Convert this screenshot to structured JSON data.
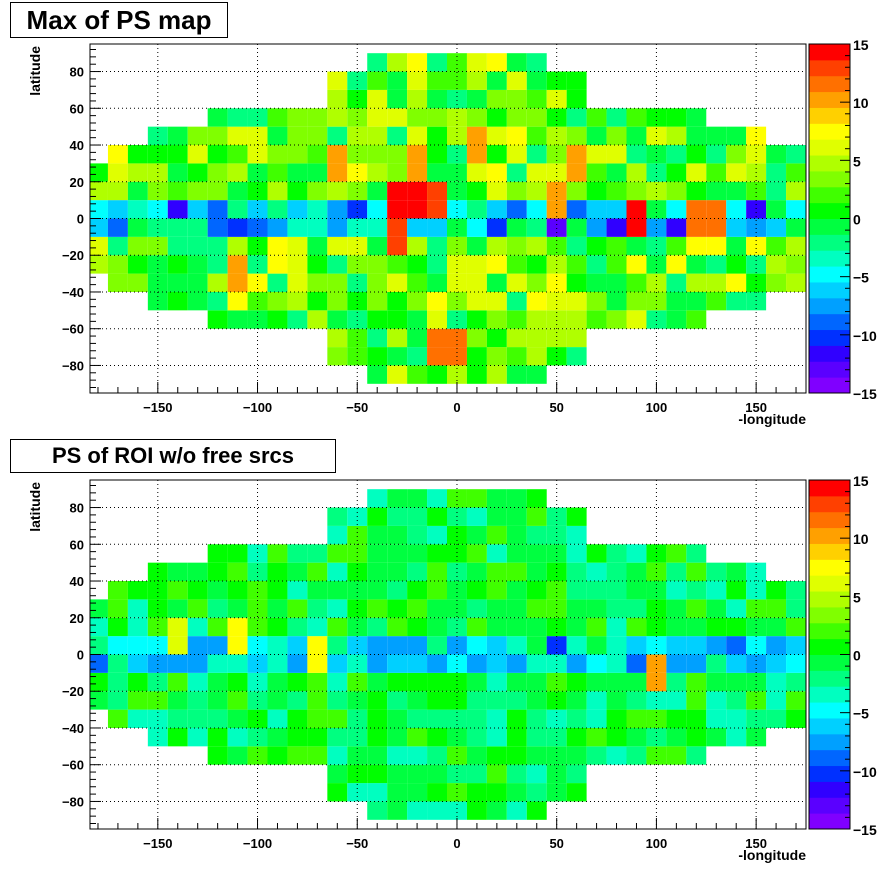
{
  "chart_data": [
    {
      "type": "heatmap",
      "title": "Max of PS map",
      "xlabel": "-longitude",
      "ylabel": "latitude",
      "xlim": [
        -184,
        175
      ],
      "ylim": [
        -95,
        95
      ],
      "xticks": [
        -150,
        -100,
        -50,
        0,
        50,
        100,
        150
      ],
      "yticks": [
        -80,
        -60,
        -40,
        -20,
        0,
        20,
        40,
        60,
        80
      ],
      "colorbar": {
        "min": -15,
        "max": 15,
        "ticks": [
          -15,
          -10,
          -5,
          0,
          5,
          10,
          15
        ]
      },
      "grid": true,
      "palette": [
        "#8000ff",
        "#5a00ff",
        "#3000ff",
        "#0030ff",
        "#0066ff",
        "#00a0ff",
        "#00d0ff",
        "#00ffff",
        "#00ffc0",
        "#00ff80",
        "#00ff40",
        "#00ff00",
        "#40ff00",
        "#80ff00",
        "#b0ff00",
        "#e0ff00",
        "#ffff00",
        "#ffd000",
        "#ffa000",
        "#ff7000",
        "#ff4000",
        "#ff0000"
      ],
      "seed": 17,
      "bias": 2.5,
      "plane_bias": -9,
      "noise": 5,
      "hot_spots": [
        {
          "lon": -30,
          "lat": 10,
          "value": 14
        },
        {
          "lon": -20,
          "lat": 10,
          "value": 14
        },
        {
          "lon": -10,
          "lat": 10,
          "value": 13
        },
        {
          "lon": 90,
          "lat": 0,
          "value": 15
        },
        {
          "lon": -30,
          "lat": -10,
          "value": 13
        },
        {
          "lon": 125,
          "lat": 0,
          "value": 11
        },
        {
          "lon": -5,
          "lat": -70,
          "value": 11
        },
        {
          "lon": -110,
          "lat": -30,
          "value": 10
        },
        {
          "lon": 60,
          "lat": 30,
          "value": 10
        },
        {
          "lon": -60,
          "lat": 30,
          "value": 10
        },
        {
          "lon": -20,
          "lat": 30,
          "value": 10
        },
        {
          "lon": 10,
          "lat": 40,
          "value": 10
        },
        {
          "lon": 50,
          "lat": 10,
          "value": 10
        }
      ]
    },
    {
      "type": "heatmap",
      "title": "PS of ROI w/o free srcs",
      "xlabel": "-longitude",
      "ylabel": "latitude",
      "xlim": [
        -184,
        175
      ],
      "ylim": [
        -95,
        95
      ],
      "xticks": [
        -150,
        -100,
        -50,
        0,
        50,
        100,
        150
      ],
      "yticks": [
        -80,
        -60,
        -40,
        -20,
        0,
        20,
        40,
        60,
        80
      ],
      "colorbar": {
        "min": -15,
        "max": 15,
        "ticks": [
          -15,
          -10,
          -5,
          0,
          5,
          10,
          15
        ]
      },
      "grid": true,
      "palette": [
        "#8000ff",
        "#5a00ff",
        "#3000ff",
        "#0030ff",
        "#0066ff",
        "#00a0ff",
        "#00d0ff",
        "#00ffff",
        "#00ffc0",
        "#00ff80",
        "#00ff40",
        "#00ff00",
        "#40ff00",
        "#80ff00",
        "#b0ff00",
        "#e0ff00",
        "#ffff00",
        "#ffd000",
        "#ffa000",
        "#ff7000",
        "#ff4000",
        "#ff0000"
      ],
      "seed": 91,
      "bias": -0.5,
      "plane_bias": -5,
      "noise": 3,
      "hot_spots": [
        {
          "lon": 100,
          "lat": -10,
          "value": 10
        },
        {
          "lon": -110,
          "lat": 10,
          "value": 7
        },
        {
          "lon": -140,
          "lat": 10,
          "value": 6
        },
        {
          "lon": -70,
          "lat": 0,
          "value": 7
        }
      ]
    }
  ]
}
